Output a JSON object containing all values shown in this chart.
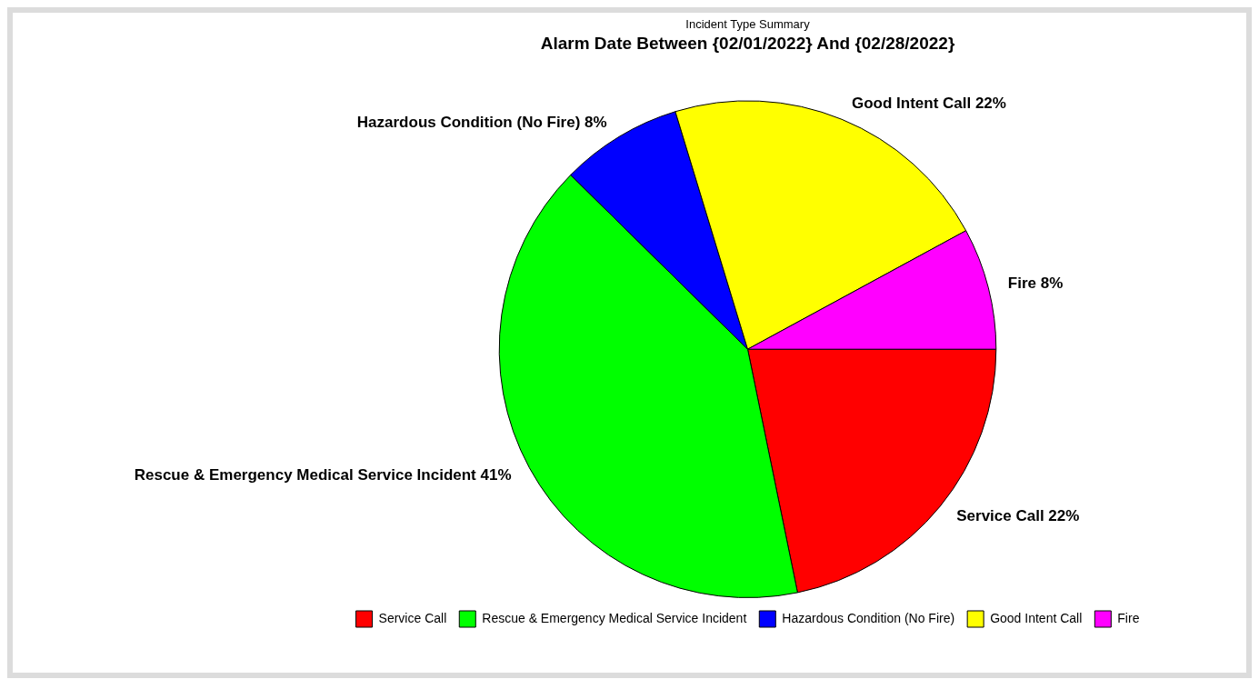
{
  "chart_data": {
    "type": "pie",
    "title": "Incident Type Summary",
    "subtitle": "Alarm Date Between {02/01/2022} And {02/28/2022}",
    "categories": [
      "Service Call",
      "Rescue & Emergency Medical Service Incident",
      "Hazardous Condition (No Fire)",
      "Good Intent Call",
      "Fire"
    ],
    "values": [
      22,
      41,
      8,
      22,
      8
    ],
    "value_labels": [
      "22%",
      "41%",
      "8%",
      "22%",
      "8%"
    ],
    "colors": [
      "#ff0000",
      "#00ff00",
      "#0000ff",
      "#ffff00",
      "#ff00ff"
    ],
    "legend": "bottom"
  }
}
